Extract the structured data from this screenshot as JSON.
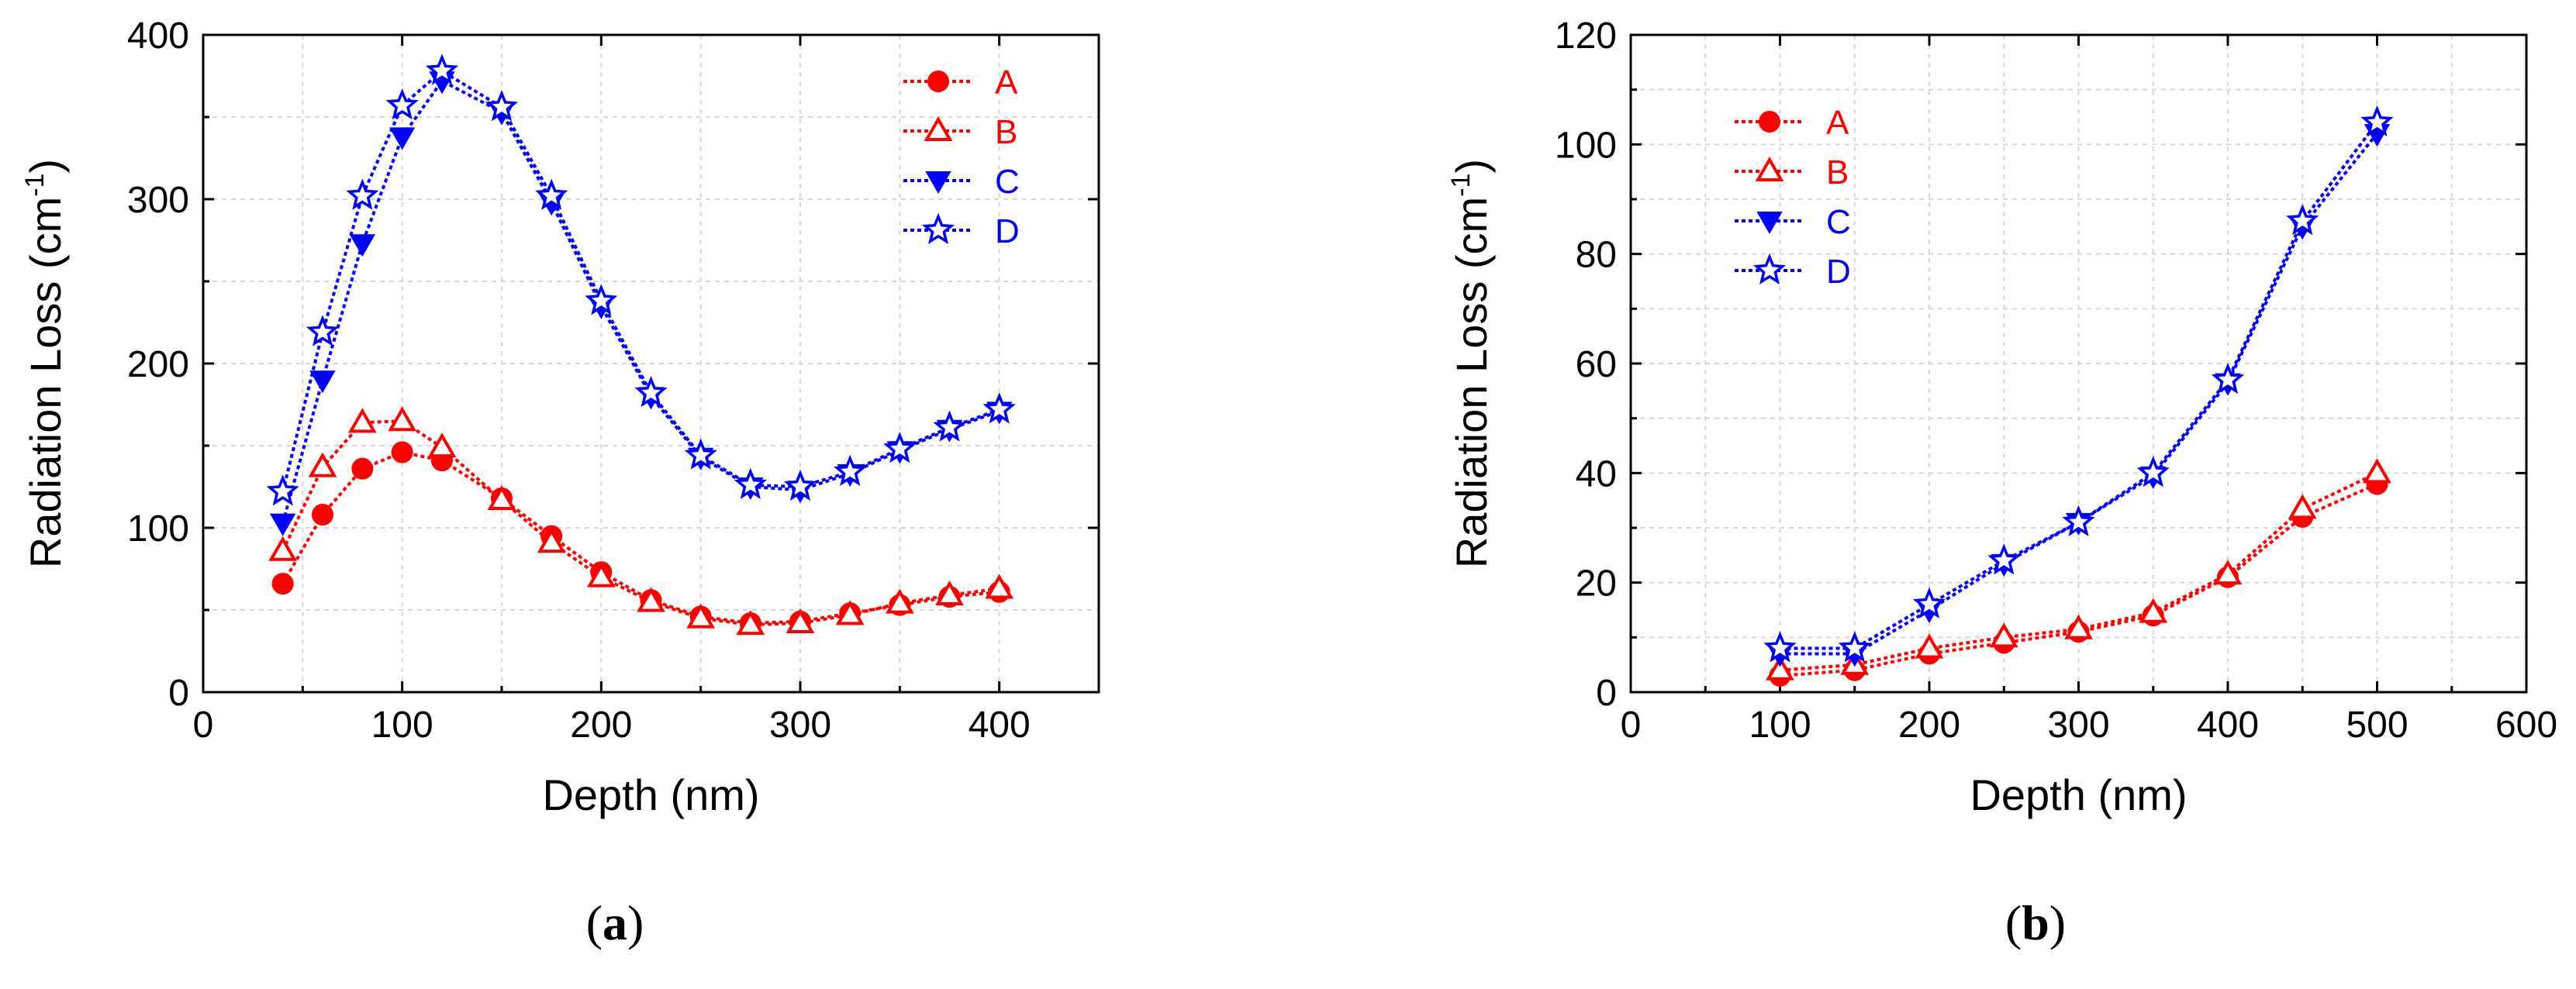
{
  "chart_data": [
    {
      "type": "line",
      "panel_label": "a",
      "xlabel": "Depth (nm)",
      "ylabel": "Radiation Loss (cm",
      "ylabel_sup": "-1",
      "ylabel_close": ")",
      "xlim": [
        0,
        450
      ],
      "ylim": [
        0,
        400
      ],
      "xticks": [
        0,
        100,
        200,
        300,
        400
      ],
      "yticks": [
        0,
        100,
        200,
        300,
        400
      ],
      "grid": true,
      "legend_position": "top-right",
      "series": [
        {
          "name": "A",
          "color": "#ff0000",
          "marker": "circle",
          "x": [
            40,
            60,
            80,
            100,
            120,
            150,
            175,
            200,
            225,
            250,
            275,
            300,
            325,
            350,
            375,
            400
          ],
          "y": [
            66,
            108,
            136,
            146,
            141,
            118,
            95,
            73,
            56,
            46,
            42,
            43,
            48,
            53,
            58,
            61
          ]
        },
        {
          "name": "B",
          "color": "#ff0000",
          "marker": "triangle-up-open",
          "x": [
            40,
            60,
            80,
            100,
            120,
            150,
            175,
            200,
            225,
            250,
            275,
            300,
            325,
            350,
            375,
            400
          ],
          "y": [
            86,
            137,
            164,
            165,
            149,
            117,
            91,
            70,
            55,
            45,
            41,
            42,
            47,
            54,
            59,
            63
          ]
        },
        {
          "name": "C",
          "color": "#0000ff",
          "marker": "triangle-down",
          "x": [
            40,
            60,
            80,
            100,
            120,
            150,
            175,
            200,
            225,
            250,
            275,
            300,
            325,
            350,
            375,
            400
          ],
          "y": [
            103,
            190,
            273,
            338,
            372,
            353,
            298,
            235,
            180,
            143,
            125,
            123,
            133,
            147,
            160,
            171
          ]
        },
        {
          "name": "D",
          "color": "#0000ff",
          "marker": "star-open",
          "x": [
            40,
            60,
            80,
            100,
            120,
            150,
            175,
            200,
            225,
            250,
            275,
            300,
            325,
            350,
            375,
            400
          ],
          "y": [
            122,
            219,
            302,
            357,
            378,
            356,
            302,
            238,
            182,
            144,
            126,
            125,
            134,
            148,
            161,
            172
          ]
        }
      ]
    },
    {
      "type": "line",
      "panel_label": "b",
      "xlabel": "Depth (nm)",
      "ylabel": "Radiation Loss (cm",
      "ylabel_sup": "-1",
      "ylabel_close": ")",
      "xlim": [
        0,
        600
      ],
      "ylim": [
        0,
        120
      ],
      "xticks": [
        0,
        100,
        200,
        300,
        400,
        500,
        600
      ],
      "yticks": [
        0,
        20,
        40,
        60,
        80,
        100,
        120
      ],
      "grid": true,
      "legend_position": "top-left",
      "series": [
        {
          "name": "A",
          "color": "#ff0000",
          "marker": "circle",
          "x": [
            100,
            150,
            200,
            250,
            300,
            350,
            400,
            450,
            500
          ],
          "y": [
            3,
            4,
            7,
            9,
            11,
            14,
            21,
            32,
            38
          ]
        },
        {
          "name": "B",
          "color": "#ff0000",
          "marker": "triangle-up-open",
          "x": [
            100,
            150,
            200,
            250,
            300,
            350,
            400,
            450,
            500
          ],
          "y": [
            4,
            5,
            8,
            10,
            11.5,
            14.5,
            21.5,
            33.5,
            40
          ]
        },
        {
          "name": "C",
          "color": "#0000ff",
          "marker": "triangle-down",
          "x": [
            100,
            150,
            200,
            250,
            300,
            350,
            400,
            450,
            500
          ],
          "y": [
            7,
            7,
            15,
            23.5,
            31,
            39.5,
            56.5,
            85,
            102
          ]
        },
        {
          "name": "D",
          "color": "#0000ff",
          "marker": "star-open",
          "x": [
            100,
            150,
            200,
            250,
            300,
            350,
            400,
            450,
            500
          ],
          "y": [
            8,
            8,
            16,
            24,
            31,
            40,
            57,
            86,
            104
          ]
        }
      ]
    }
  ]
}
